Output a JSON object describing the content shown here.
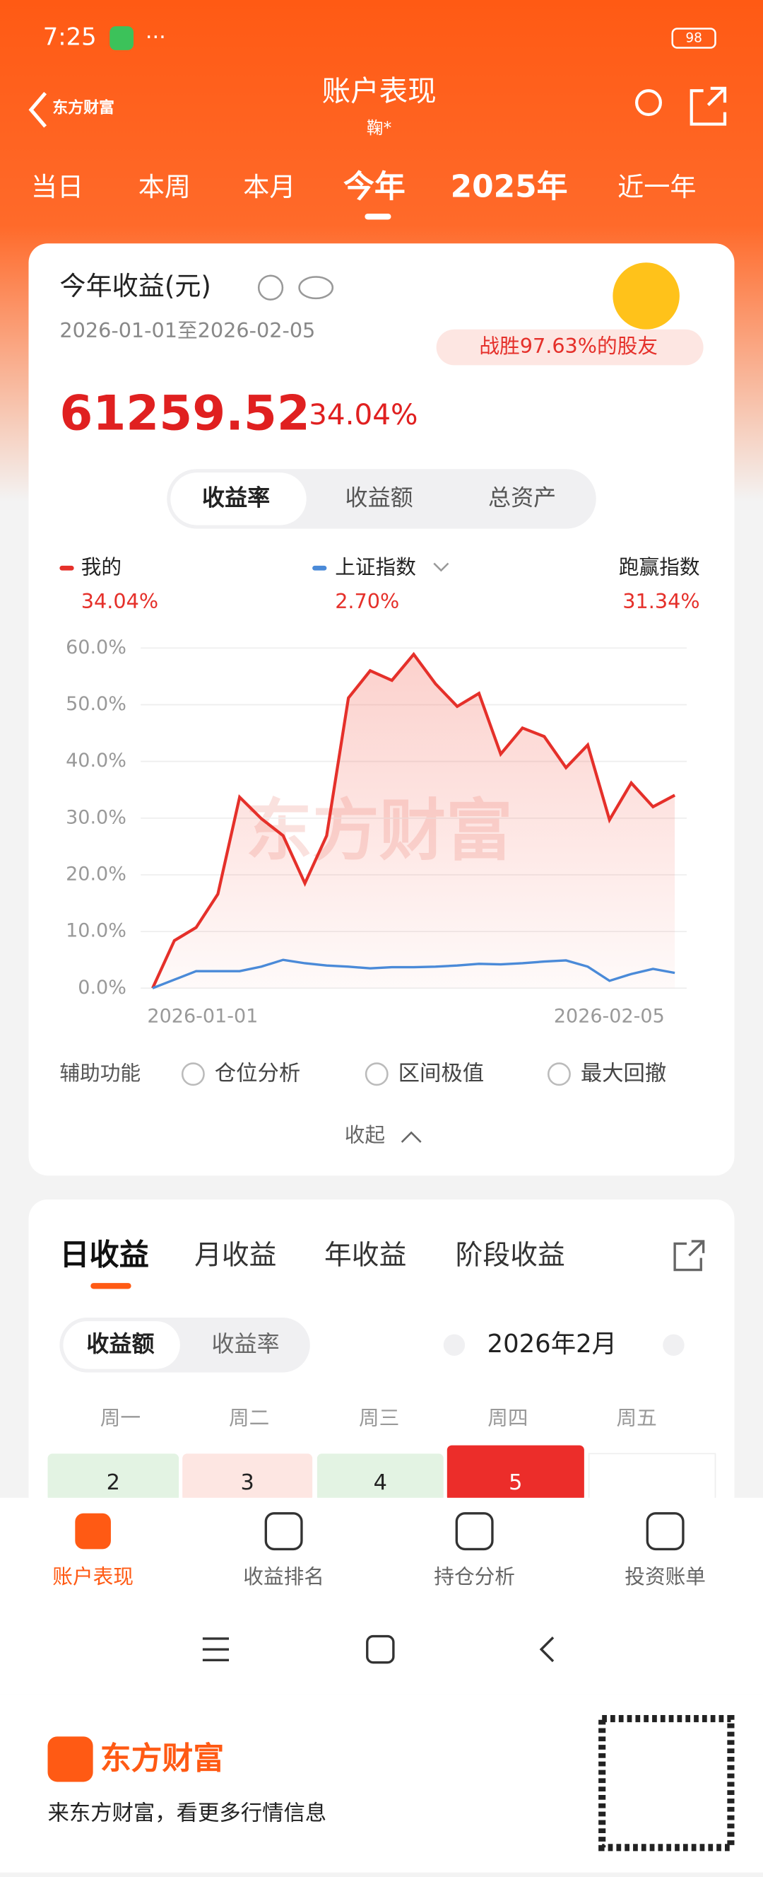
{
  "status": {
    "time": "7:25",
    "battery": "98"
  },
  "header": {
    "logo": "东方财富",
    "title": "账户表现",
    "subtitle": "鞠*"
  },
  "period_tabs": [
    "当日",
    "本周",
    "本月",
    "今年",
    "2025年",
    "近一年"
  ],
  "summary": {
    "title": "今年收益(元)",
    "date_range": "2026-01-01至2026-02-05",
    "badge": "战胜97.63%的股友",
    "amount": "61259.52",
    "rate": "34.04%"
  },
  "chart_tabs": [
    "收益率",
    "收益额",
    "总资产"
  ],
  "legend_stats": {
    "values": [
      "34.04%",
      "2.70%",
      "31.34%"
    ],
    "excess_label": "跑赢指数"
  },
  "chart_data": {
    "type": "line",
    "watermark": "东方财富",
    "categories": [
      "2026-01-01",
      null,
      null,
      null,
      null,
      null,
      null,
      null,
      null,
      null,
      null,
      null,
      null,
      null,
      null,
      null,
      null,
      null,
      null,
      null,
      null,
      null,
      null,
      null,
      "2026-02-05"
    ],
    "series": [
      {
        "name": "我的",
        "color": "#e5302a",
        "values": [
          0,
          8.4,
          10.7,
          16.6,
          33.7,
          29.9,
          26.9,
          18.5,
          26.9,
          51.2,
          56.0,
          54.3,
          58.9,
          53.7,
          49.7,
          52.0,
          41.3,
          45.9,
          44.4,
          38.9,
          42.9,
          29.7,
          36.2,
          32.0,
          34.04
        ]
      },
      {
        "name": "上证指数",
        "color": "#4a8ad8",
        "values": [
          0,
          1.5,
          3.0,
          3.0,
          3.0,
          3.8,
          5.0,
          4.4,
          4.0,
          3.8,
          3.5,
          3.7,
          3.7,
          3.8,
          4.0,
          4.3,
          4.2,
          4.4,
          4.7,
          4.9,
          3.8,
          1.3,
          2.5,
          3.4,
          2.7
        ]
      }
    ],
    "ylim": [
      0,
      60
    ],
    "yticks": [
      {
        "value": 0,
        "label": "0.0%"
      },
      {
        "value": 10,
        "label": "10.0%"
      },
      {
        "value": 20,
        "label": "20.0%"
      },
      {
        "value": 30,
        "label": "30.0%"
      },
      {
        "value": 40,
        "label": "40.0%"
      },
      {
        "value": 50,
        "label": "50.0%"
      },
      {
        "value": 60,
        "label": "60.0%"
      }
    ],
    "grid": true
  },
  "tools": {
    "label": "辅助功能",
    "options": [
      "仓位分析",
      "区间极值",
      "最大回撤"
    ],
    "collapse": "收起"
  },
  "returns_tabs": [
    "日收益",
    "月收益",
    "年收益",
    "阶段收益"
  ],
  "returns_toggle": [
    "收益额",
    "收益率"
  ],
  "month": "2026年2月",
  "weekdays": [
    "周一",
    "周二",
    "周三",
    "周四",
    "周五"
  ],
  "calendar_days": [
    "2",
    "3",
    "4",
    "5"
  ],
  "bottom_nav": [
    "账户表现",
    "收益排名",
    "持仓分析",
    "投资账单"
  ],
  "ad": {
    "brand": "东方财富",
    "slogan": "来东方财富，看更多行情信息"
  }
}
